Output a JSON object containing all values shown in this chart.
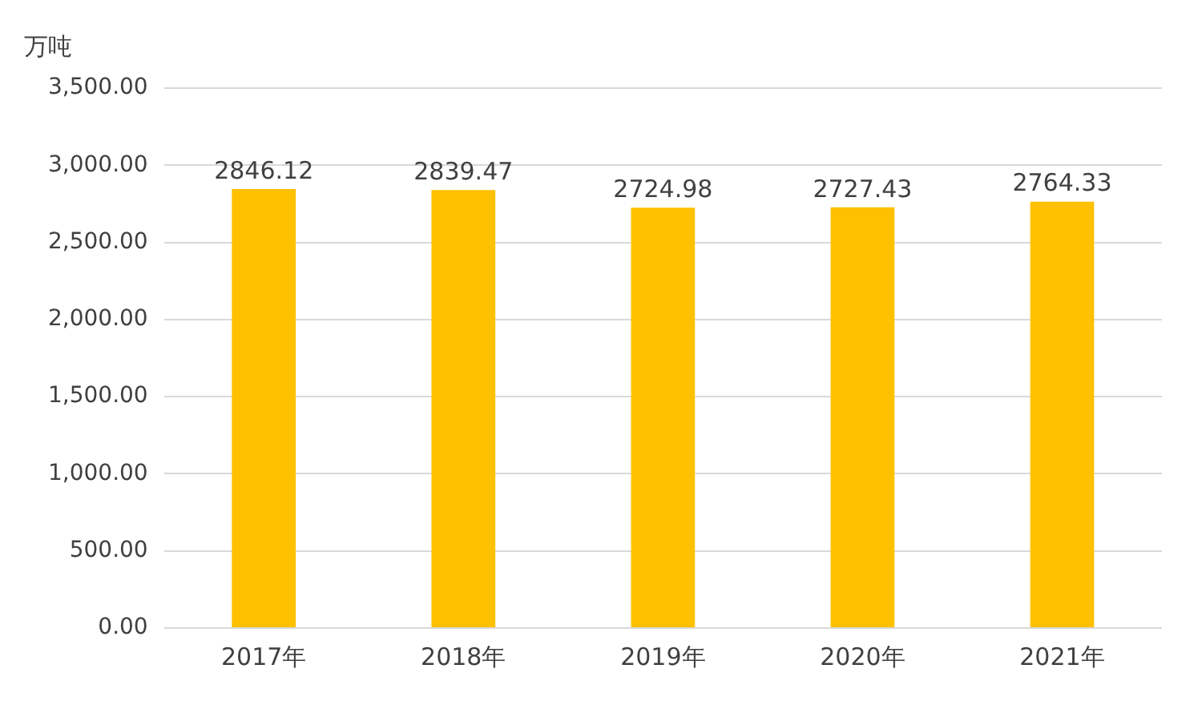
{
  "chart_data": {
    "type": "bar",
    "ylabel": "万吨",
    "categories": [
      "2017年",
      "2018年",
      "2019年",
      "2020年",
      "2021年"
    ],
    "values": [
      2846.12,
      2839.47,
      2724.98,
      2727.43,
      2764.33
    ],
    "color": "#ffc000",
    "ylim": [
      0,
      3500
    ],
    "yticks": [
      {
        "value": 0,
        "label": "0.00"
      },
      {
        "value": 500,
        "label": "500.00"
      },
      {
        "value": 1000,
        "label": "1,000.00"
      },
      {
        "value": 1500,
        "label": "1,500.00"
      },
      {
        "value": 2000,
        "label": "2,000.00"
      },
      {
        "value": 2500,
        "label": "2,500.00"
      },
      {
        "value": 3000,
        "label": "3,000.00"
      },
      {
        "value": 3500,
        "label": "3,500.00"
      }
    ],
    "grid": "y",
    "data_labels": true,
    "legend": false
  }
}
